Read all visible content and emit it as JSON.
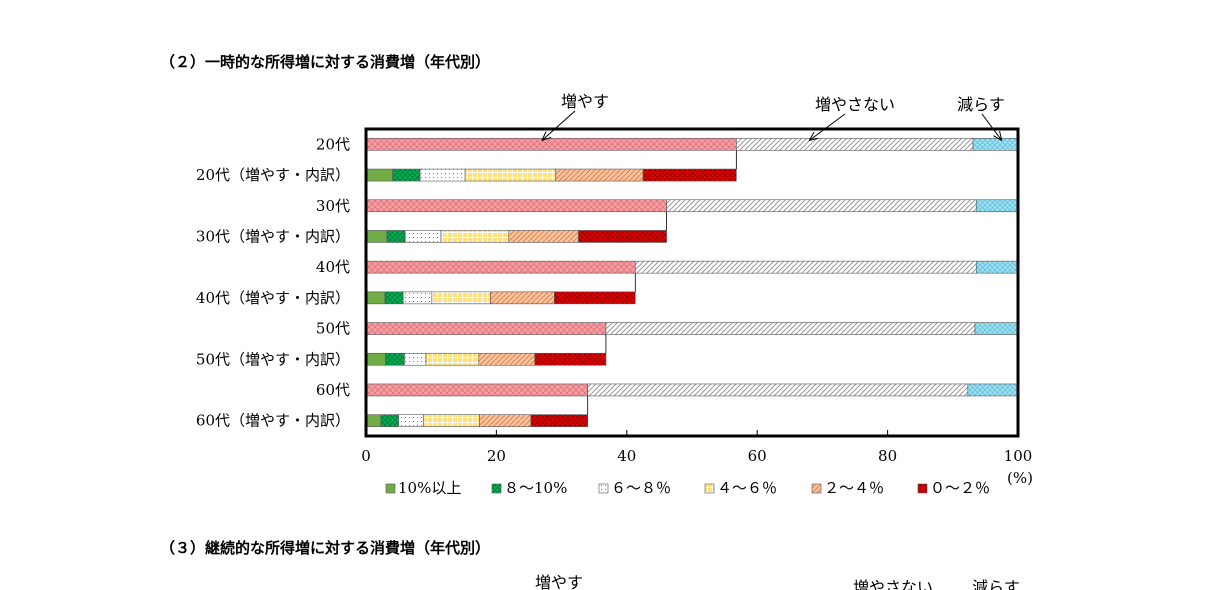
{
  "section2_title": "（２）一時的な所得増に対する消費増（年代別）",
  "section3_title": "（３）継続的な所得増に対する消費増（年代別）",
  "section3_annotations": [
    "増やす",
    "増やさない",
    "減らす"
  ],
  "chart_data": {
    "type": "bar",
    "orientation": "horizontal",
    "stacked": true,
    "categories": [
      "20代",
      "20代（増やす・内訳）",
      "30代",
      "30代（増やす・内訳）",
      "40代",
      "40代（増やす・内訳）",
      "50代",
      "50代（増やす・内訳）",
      "60代",
      "60代（増やす・内訳）"
    ],
    "main_series": [
      {
        "name": "増やす",
        "color": "#f4a0a4"
      },
      {
        "name": "増やさない",
        "color": "#d9d9d9"
      },
      {
        "name": "減らす",
        "color": "#9fdff0"
      }
    ],
    "main_values": [
      [
        56.8,
        36.3,
        6.9
      ],
      [
        46.1,
        47.5,
        6.4
      ],
      [
        41.3,
        52.3,
        6.4
      ],
      [
        36.8,
        56.6,
        6.6
      ],
      [
        34.0,
        58.3,
        7.7
      ]
    ],
    "breakdown_series": [
      {
        "name": "10%以上",
        "color": "#70ad47"
      },
      {
        "name": "８～10%",
        "color": "#00b050"
      },
      {
        "name": "６～８％",
        "color": "#ffffff"
      },
      {
        "name": "４～６％",
        "color": "#ffd966"
      },
      {
        "name": "２～４％",
        "color": "#f4b183"
      },
      {
        "name": "０～２％",
        "color": "#e00000"
      }
    ],
    "breakdown_values": [
      [
        4.1,
        4.2,
        6.9,
        13.9,
        13.4,
        14.3
      ],
      [
        3.2,
        2.8,
        5.5,
        10.4,
        10.7,
        13.5
      ],
      [
        2.9,
        2.8,
        4.4,
        9.0,
        9.8,
        12.4
      ],
      [
        3.0,
        2.9,
        3.3,
        8.1,
        8.6,
        10.9
      ],
      [
        2.3,
        2.7,
        3.8,
        8.6,
        7.9,
        8.7
      ]
    ],
    "annotations": [
      "増やす",
      "増やさない",
      "減らす"
    ],
    "x_ticks": [
      "0",
      "20",
      "40",
      "60",
      "80",
      "100"
    ],
    "xlim": [
      0,
      100
    ],
    "x_unit": "(%)",
    "legend_position": "bottom"
  }
}
